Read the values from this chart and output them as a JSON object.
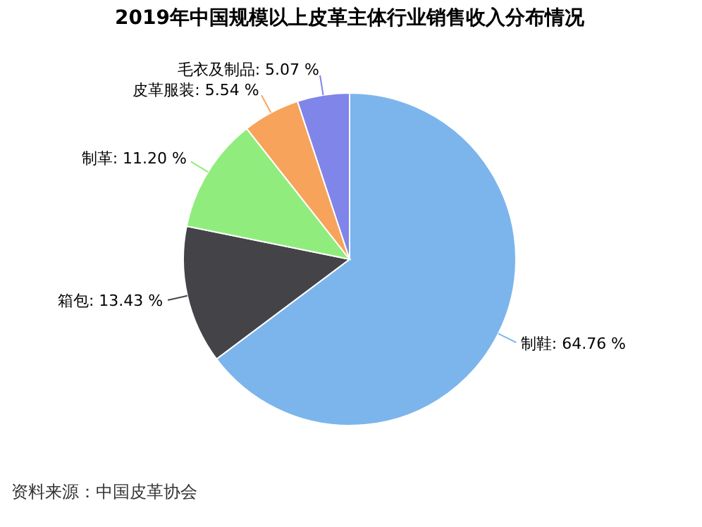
{
  "chart_data": {
    "type": "pie",
    "title": "2019年中国规模以上皮革主体行业销售收入分布情况",
    "categories": [
      "制鞋",
      "箱包",
      "制革",
      "皮革服装",
      "毛衣及制品"
    ],
    "values": [
      64.76,
      13.43,
      11.2,
      5.54,
      5.07
    ],
    "value_labels": [
      "64.76 %",
      "13.43 %",
      "11.20 %",
      "5.54 %",
      "5.07 %"
    ],
    "colors": [
      "#7cb5ec",
      "#434348",
      "#90ed7d",
      "#f7a35c",
      "#8085e9"
    ],
    "annotations": [
      "资料来源：中国皮革协会"
    ]
  }
}
